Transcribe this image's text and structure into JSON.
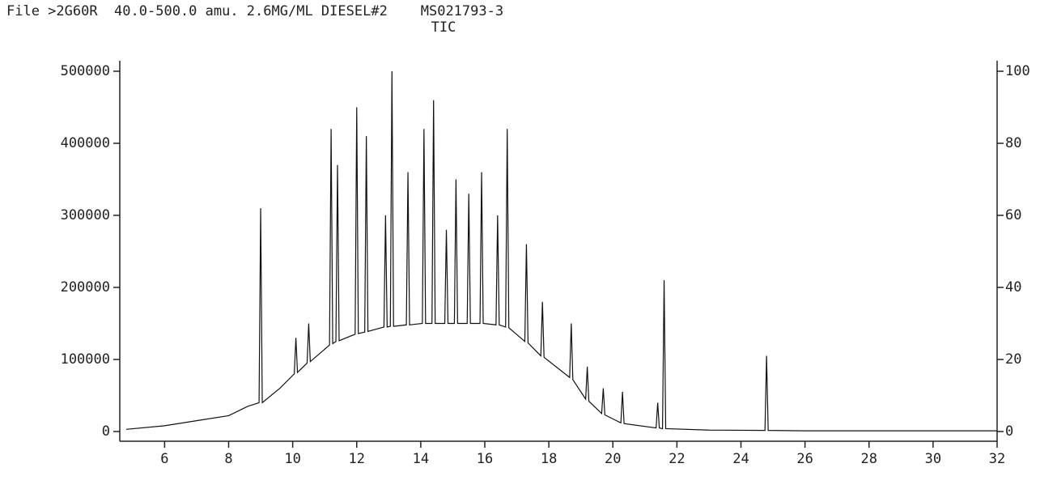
{
  "chart_data": {
    "type": "line",
    "title": "File >2G60R  40.0-500.0 amu. 2.6MG/ML DIESEL#2    MS021793-3",
    "subtitle": "TIC",
    "color": "#111111",
    "x": [
      4.8,
      6.0,
      7.0,
      8.0,
      8.6,
      8.95,
      9.0,
      9.05,
      9.6,
      10.05,
      10.1,
      10.15,
      10.45,
      10.5,
      10.55,
      11.15,
      11.2,
      11.25,
      11.35,
      11.4,
      11.45,
      11.95,
      12.0,
      12.05,
      12.25,
      12.3,
      12.35,
      12.85,
      12.9,
      12.95,
      13.05,
      13.1,
      13.15,
      13.55,
      13.6,
      13.65,
      14.05,
      14.1,
      14.15,
      14.35,
      14.4,
      14.45,
      14.75,
      14.8,
      14.85,
      15.05,
      15.1,
      15.15,
      15.45,
      15.5,
      15.55,
      15.85,
      15.9,
      15.95,
      16.35,
      16.4,
      16.45,
      16.65,
      16.7,
      16.75,
      17.25,
      17.3,
      17.35,
      17.75,
      17.8,
      17.85,
      18.65,
      18.7,
      18.75,
      19.15,
      19.2,
      19.25,
      19.65,
      19.7,
      19.75,
      20.25,
      20.3,
      20.35,
      21.35,
      21.4,
      21.45,
      21.55,
      21.6,
      21.65,
      23.0,
      24.75,
      24.8,
      24.85,
      26.0,
      32.0
    ],
    "values": [
      3000,
      8000,
      15000,
      22000,
      35000,
      40000,
      310000,
      40000,
      60000,
      80000,
      130000,
      82000,
      95000,
      150000,
      97000,
      120000,
      420000,
      122000,
      125000,
      370000,
      126000,
      135000,
      450000,
      136000,
      138000,
      410000,
      139000,
      145000,
      300000,
      145000,
      146000,
      500000,
      146000,
      148000,
      360000,
      148000,
      150000,
      420000,
      150000,
      150000,
      460000,
      150000,
      150000,
      280000,
      150000,
      150000,
      350000,
      150000,
      150000,
      330000,
      150000,
      150000,
      360000,
      150000,
      148000,
      300000,
      148000,
      145000,
      420000,
      144000,
      125000,
      260000,
      123000,
      105000,
      180000,
      103000,
      75000,
      150000,
      72000,
      45000,
      90000,
      42000,
      25000,
      60000,
      23000,
      12000,
      55000,
      11000,
      5000,
      40000,
      5000,
      4000,
      210000,
      4000,
      2000,
      1500,
      105000,
      1500,
      1000,
      1000
    ],
    "xlim": [
      4.6,
      32
    ],
    "xticks": [
      6,
      8,
      10,
      12,
      14,
      16,
      18,
      20,
      22,
      24,
      26,
      28,
      30,
      32
    ],
    "ylim": [
      0,
      500000
    ],
    "yticks": [
      0,
      100000,
      200000,
      300000,
      400000,
      500000
    ],
    "y2lim": [
      0,
      100
    ],
    "y2ticks": [
      0,
      20,
      40,
      60,
      80,
      100
    ]
  }
}
